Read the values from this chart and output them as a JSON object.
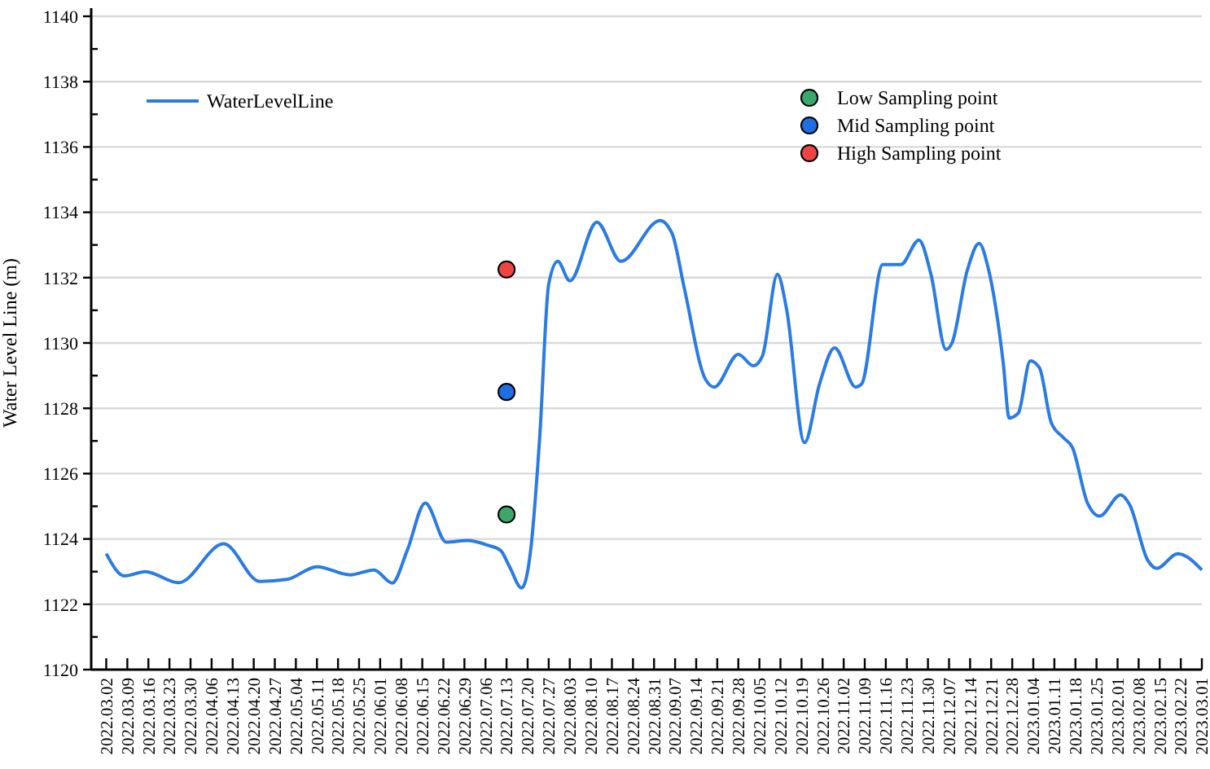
{
  "chart_data": {
    "type": "line",
    "ylabel": "Water Level Line (m)",
    "xlim": [
      "2022-02-25",
      "2023-03-01"
    ],
    "ylim": [
      1120,
      1140
    ],
    "yticks": [
      1120,
      {
        "value": 1121,
        "label": null
      },
      1122,
      {
        "value": 1123,
        "label": null
      },
      1124,
      {
        "value": 1125,
        "label": null
      },
      1126,
      {
        "value": 1127,
        "label": null
      },
      1128,
      {
        "value": 1129,
        "label": null
      },
      1130,
      {
        "value": 1131,
        "label": null
      },
      1132,
      {
        "value": 1133,
        "label": null
      },
      1134,
      {
        "value": 1135,
        "label": null
      },
      1136,
      {
        "value": 1137,
        "label": null
      },
      1138,
      {
        "value": 1139,
        "label": null
      },
      1140
    ],
    "xticks": [
      {
        "value": "2022-03-02",
        "label": "2022.03.02"
      },
      {
        "value": "2022-03-09",
        "label": "2022.03.09"
      },
      {
        "value": "2022-03-16",
        "label": "2022.03.16"
      },
      {
        "value": "2022-03-23",
        "label": "2022.03.23"
      },
      {
        "value": "2022-03-30",
        "label": "2022.03.30"
      },
      {
        "value": "2022-04-06",
        "label": "2022.04.06"
      },
      {
        "value": "2022-04-13",
        "label": "2022.04.13"
      },
      {
        "value": "2022-04-20",
        "label": "2022.04.20"
      },
      {
        "value": "2022-04-27",
        "label": "2022.04.27"
      },
      {
        "value": "2022-05-04",
        "label": "2022.05.04"
      },
      {
        "value": "2022-05-11",
        "label": "2022.05.11"
      },
      {
        "value": "2022-05-18",
        "label": "2022.05.18"
      },
      {
        "value": "2022-05-25",
        "label": "2022.05.25"
      },
      {
        "value": "2022-06-01",
        "label": "2022.06.01"
      },
      {
        "value": "2022-06-08",
        "label": "2022.06.08"
      },
      {
        "value": "2022-06-15",
        "label": "2022.06.15"
      },
      {
        "value": "2022-06-22",
        "label": "2022.06.22"
      },
      {
        "value": "2022-06-29",
        "label": "2022.06.29"
      },
      {
        "value": "2022-07-06",
        "label": "2022.07.06"
      },
      {
        "value": "2022-07-13",
        "label": "2022.07.13"
      },
      {
        "value": "2022-07-20",
        "label": "2022.07.20"
      },
      {
        "value": "2022-07-27",
        "label": "2022.07.27"
      },
      {
        "value": "2022-08-03",
        "label": "2022.08.03"
      },
      {
        "value": "2022-08-10",
        "label": "2022.08.10"
      },
      {
        "value": "2022-08-17",
        "label": "2022.08.17"
      },
      {
        "value": "2022-08-24",
        "label": "2022.08.24"
      },
      {
        "value": "2022-08-31",
        "label": "2022.08.31"
      },
      {
        "value": "2022-09-07",
        "label": "2022.09.07"
      },
      {
        "value": "2022-09-14",
        "label": "2022.09.14"
      },
      {
        "value": "2022-09-21",
        "label": "2022.09.21"
      },
      {
        "value": "2022-09-28",
        "label": "2022.09.28"
      },
      {
        "value": "2022-10-05",
        "label": "2022.10.05"
      },
      {
        "value": "2022-10-12",
        "label": "2022.10.12"
      },
      {
        "value": "2022-10-19",
        "label": "2022.10.19"
      },
      {
        "value": "2022-10-26",
        "label": "2022.10.26"
      },
      {
        "value": "2022-11-02",
        "label": "2022.11.02"
      },
      {
        "value": "2022-11-09",
        "label": "2022.11.09"
      },
      {
        "value": "2022-11-16",
        "label": "2022.11.16"
      },
      {
        "value": "2022-11-23",
        "label": "2022.11.23"
      },
      {
        "value": "2022-11-30",
        "label": "2022.11.30"
      },
      {
        "value": "2022-12-07",
        "label": "2022.12.07"
      },
      {
        "value": "2022-12-14",
        "label": "2022.12.14"
      },
      {
        "value": "2022-12-21",
        "label": "2022.12.21"
      },
      {
        "value": "2022-12-28",
        "label": "2022.12.28"
      },
      {
        "value": "2023-01-04",
        "label": "2023.01.04"
      },
      {
        "value": "2023-01-11",
        "label": "2023.01.11"
      },
      {
        "value": "2023-01-18",
        "label": "2023.01.18"
      },
      {
        "value": "2023-01-25",
        "label": "2023.01.25"
      },
      {
        "value": "2023-02-01",
        "label": "2023.02.01"
      },
      {
        "value": "2023-02-08",
        "label": "2023.02.08"
      },
      {
        "value": "2023-02-15",
        "label": "2023.02.15"
      },
      {
        "value": "2023-02-22",
        "label": "2023.02.22"
      },
      {
        "value": "2023-03-01",
        "label": "2023.03.01"
      }
    ],
    "grid": "y",
    "legend": "top left",
    "marker": "none",
    "line_style": "solid",
    "series": [
      {
        "name": "WaterLevelLine",
        "color": "#2a7be4",
        "x": [
          "2022-03-02",
          "2022-03-08",
          "2022-03-15",
          "2022-03-26",
          "2022-04-10",
          "2022-04-22",
          "2022-05-01",
          "2022-05-11",
          "2022-05-22",
          "2022-05-30",
          "2022-06-05",
          "2022-06-10",
          "2022-06-16",
          "2022-06-23",
          "2022-06-30",
          "2022-07-07",
          "2022-07-11",
          "2022-07-14",
          "2022-07-18",
          "2022-07-21",
          "2022-07-24",
          "2022-07-27",
          "2022-07-30",
          "2022-08-03",
          "2022-08-12",
          "2022-08-20",
          "2022-09-02",
          "2022-09-06",
          "2022-09-10",
          "2022-09-17",
          "2022-09-20",
          "2022-09-28",
          "2022-10-03",
          "2022-10-06",
          "2022-10-11",
          "2022-10-14",
          "2022-10-20",
          "2022-10-25",
          "2022-10-30",
          "2022-11-06",
          "2022-11-08",
          "2022-11-15",
          "2022-11-21",
          "2022-11-27",
          "2022-12-01",
          "2022-12-06",
          "2022-12-08",
          "2022-12-13",
          "2022-12-17",
          "2022-12-20",
          "2022-12-25",
          "2022-12-27",
          "2022-12-30",
          "2023-01-03",
          "2023-01-06",
          "2023-01-10",
          "2023-01-14",
          "2023-01-17",
          "2023-01-22",
          "2023-01-26",
          "2023-02-02",
          "2023-02-05",
          "2023-02-11",
          "2023-02-14",
          "2023-02-21",
          "2023-03-01"
        ],
        "values": [
          1123.55,
          1122.87,
          1123.0,
          1122.66,
          1123.85,
          1122.7,
          1122.76,
          1123.15,
          1122.9,
          1123.05,
          1122.65,
          1123.65,
          1125.1,
          1123.9,
          1123.95,
          1123.8,
          1123.65,
          1123.15,
          1122.5,
          1123.65,
          1127.1,
          1131.8,
          1132.5,
          1131.9,
          1133.7,
          1132.5,
          1133.75,
          1133.35,
          1131.7,
          1128.9,
          1128.65,
          1129.65,
          1129.3,
          1129.6,
          1132.1,
          1131.05,
          1126.95,
          1128.75,
          1129.85,
          1128.65,
          1128.75,
          1132.4,
          1132.4,
          1133.15,
          1132.1,
          1129.8,
          1130.0,
          1132.2,
          1133.05,
          1132.3,
          1129.4,
          1127.7,
          1127.85,
          1129.45,
          1129.25,
          1127.55,
          1127.1,
          1126.8,
          1125.1,
          1124.7,
          1125.35,
          1125.05,
          1123.35,
          1123.1,
          1123.55,
          1123.05
        ]
      },
      {
        "name": "Low Sampling point",
        "type": "scatter",
        "marker": "circle",
        "color": "#3aa86b",
        "x": [
          "2022-07-13"
        ],
        "values": [
          1124.75
        ]
      },
      {
        "name": "Mid Sampling point",
        "type": "scatter",
        "marker": "circle",
        "color": "#1f6fe0",
        "x": [
          "2022-07-13"
        ],
        "values": [
          1128.5
        ]
      },
      {
        "name": "High Sampling point",
        "type": "scatter",
        "marker": "circle",
        "color": "#ef4444",
        "x": [
          "2022-07-13"
        ],
        "values": [
          1132.25
        ]
      }
    ]
  }
}
